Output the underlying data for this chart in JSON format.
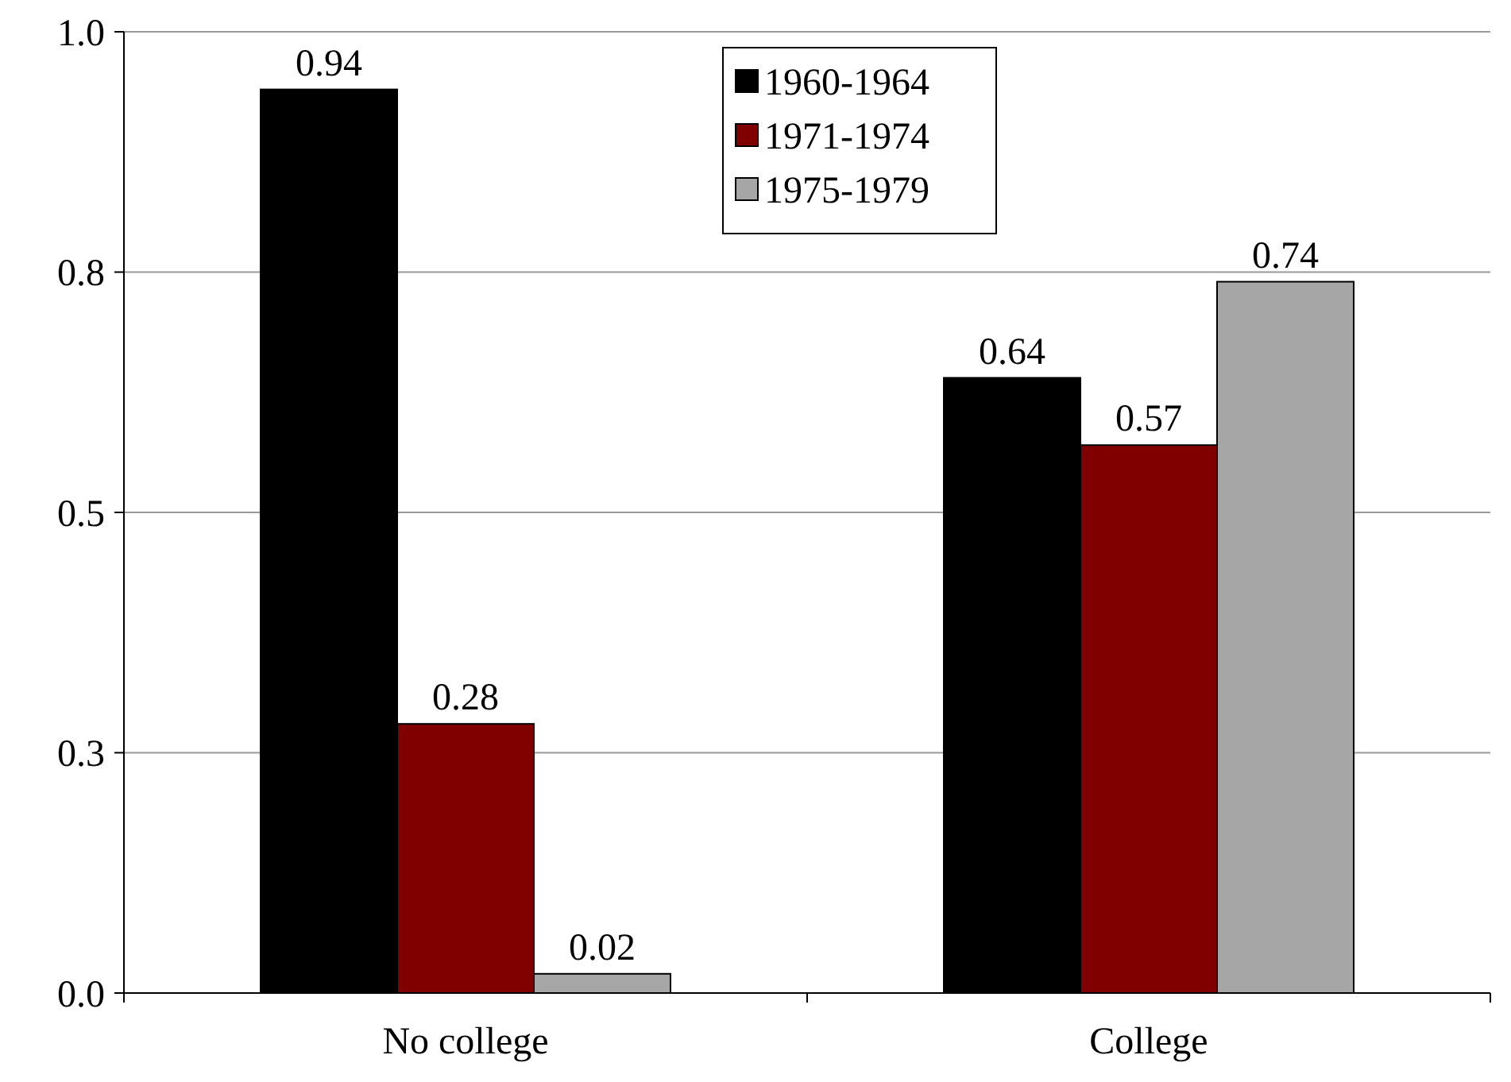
{
  "chart_data": {
    "type": "bar",
    "categories": [
      "No college",
      "College"
    ],
    "series": [
      {
        "name": "1960-1964",
        "color": "#000000",
        "values": [
          0.94,
          0.64
        ]
      },
      {
        "name": "1971-1974",
        "color": "#800000",
        "values": [
          0.28,
          0.57
        ]
      },
      {
        "name": "1975-1979",
        "color": "#a6a6a6",
        "values": [
          0.02,
          0.74
        ]
      }
    ],
    "ylim": [
      0,
      1
    ],
    "yticks": [
      {
        "value": 0,
        "label": "0.0"
      },
      {
        "value": 0.25,
        "label": "0.3"
      },
      {
        "value": 0.5,
        "label": "0.5"
      },
      {
        "value": 0.75,
        "label": "0.8"
      },
      {
        "value": 1,
        "label": "1.0"
      }
    ],
    "grid": "y",
    "legend": "top",
    "data_labels": true
  }
}
